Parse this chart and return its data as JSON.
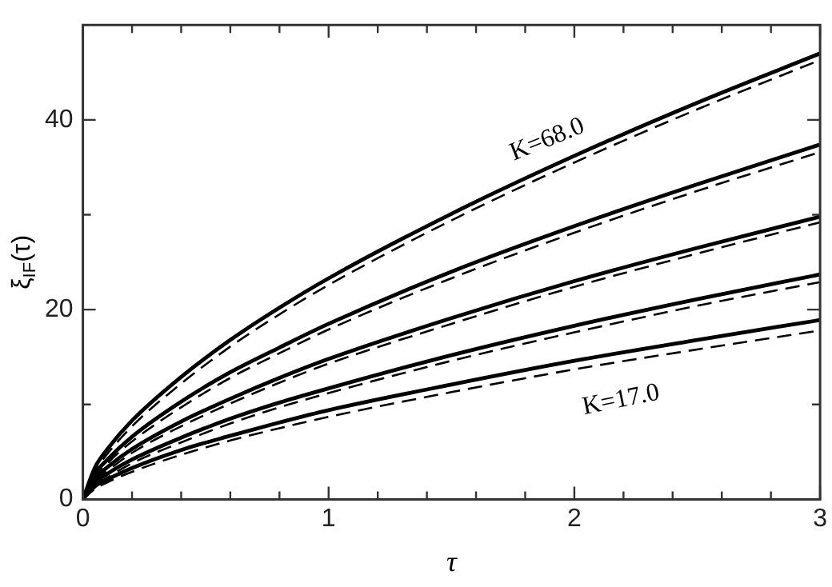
{
  "chart_data": {
    "type": "line",
    "xlabel": "τ",
    "ylabel": "ξ$_{IF}$(τ)",
    "x": [
      0,
      0.05,
      0.1,
      0.2,
      0.4,
      0.6,
      0.8,
      1,
      1.5,
      2,
      2.5,
      3
    ],
    "series": [
      {
        "color": "#000000",
        "line_style": "solid",
        "values": [
          0,
          3.4,
          5.3,
          8.3,
          12.9,
          16.8,
          20.2,
          23.3,
          30.1,
          36.2,
          41.8,
          47
        ]
      },
      {
        "color": "#000000",
        "line_style": "dashed",
        "values": [
          0,
          3.0,
          4.8,
          7.7,
          12.2,
          16.1,
          19.5,
          22.6,
          29.4,
          35.5,
          41.1,
          46.3
        ]
      },
      {
        "color": "#000000",
        "line_style": "solid",
        "values": [
          0,
          2.7,
          4.2,
          6.6,
          10.3,
          13.4,
          16.0,
          18.5,
          24.0,
          28.8,
          33.2,
          37.4
        ]
      },
      {
        "color": "#000000",
        "line_style": "dashed",
        "values": [
          0,
          2.3,
          3.8,
          6.1,
          9.7,
          12.8,
          15.4,
          17.9,
          23.3,
          28.1,
          32.5,
          36.6
        ]
      },
      {
        "color": "#000000",
        "line_style": "solid",
        "values": [
          0,
          2.2,
          3.4,
          5.3,
          8.2,
          10.6,
          12.8,
          14.8,
          19.1,
          23.0,
          26.5,
          29.8
        ]
      },
      {
        "color": "#000000",
        "line_style": "dashed",
        "values": [
          0,
          1.9,
          3.0,
          4.9,
          7.7,
          10.1,
          12.3,
          14.3,
          18.5,
          22.4,
          25.9,
          29.2
        ]
      },
      {
        "color": "#000000",
        "line_style": "solid",
        "values": [
          0,
          1.7,
          2.7,
          4.2,
          6.5,
          8.5,
          10.2,
          11.7,
          15.2,
          18.3,
          21.1,
          23.7
        ]
      },
      {
        "color": "#000000",
        "line_style": "dashed",
        "values": [
          0,
          1.4,
          2.3,
          3.8,
          6.0,
          8.0,
          9.7,
          11.2,
          14.6,
          17.6,
          20.4,
          22.9
        ]
      },
      {
        "color": "#000000",
        "line_style": "solid",
        "values": [
          0,
          1.4,
          2.1,
          3.3,
          5.2,
          6.7,
          8.1,
          9.4,
          12.1,
          14.6,
          16.8,
          18.9
        ]
      },
      {
        "color": "#000000",
        "line_style": "dashed",
        "values": [
          0,
          1.1,
          1.8,
          2.9,
          4.7,
          6.2,
          7.5,
          8.7,
          11.3,
          13.7,
          15.8,
          17.8
        ]
      }
    ],
    "xlim": [
      0,
      3
    ],
    "xticks": [
      0,
      {
        "value": 0.2,
        "label": null
      },
      {
        "value": 0.4,
        "label": null
      },
      {
        "value": 0.6,
        "label": null
      },
      {
        "value": 0.8,
        "label": null
      },
      1,
      {
        "value": 1.2,
        "label": null
      },
      {
        "value": 1.4,
        "label": null
      },
      {
        "value": 1.6,
        "label": null
      },
      {
        "value": 1.8,
        "label": null
      },
      2,
      {
        "value": 2.2,
        "label": null
      },
      {
        "value": 2.4,
        "label": null
      },
      {
        "value": 2.6,
        "label": null
      },
      {
        "value": 2.8,
        "label": null
      },
      3
    ],
    "ylim": [
      0,
      50
    ],
    "yticks": [
      0,
      {
        "value": 10,
        "label": null
      },
      20,
      {
        "value": 30,
        "label": null
      },
      40
    ],
    "annotations": [
      "K=68.0",
      "K=17.0"
    ],
    "grid": false,
    "legend": false,
    "marker": "none"
  }
}
